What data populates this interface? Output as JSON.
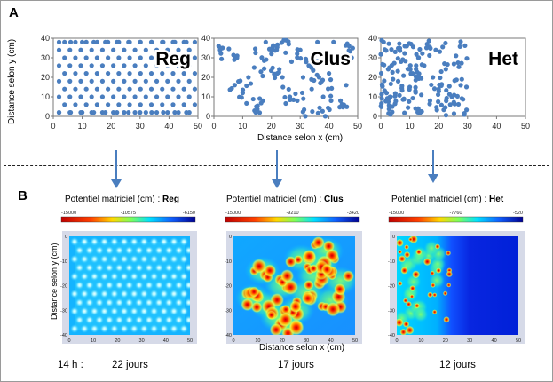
{
  "panel_a": {
    "letter": "A"
  },
  "panel_b": {
    "letter": "B"
  },
  "shared": {
    "xlabel_top": "Distance selon x (cm)",
    "ylabel_top": "Distance selon y (cm)",
    "xlabel_bottom": "Distance selon x (cm)",
    "ylabel_bottom": "Distance selon y (cm)"
  },
  "colors": {
    "point": "#4a7ebf",
    "arrow": "#4a7ebf",
    "heat_low": "#d00000",
    "heat_high": "#0a1aa0"
  },
  "chart_data": [
    {
      "type": "scatter",
      "label": "Reg",
      "pattern": "regular",
      "xlim": [
        0,
        50
      ],
      "ylim": [
        0,
        40
      ],
      "xticks": [
        0,
        10,
        20,
        30,
        40,
        50
      ],
      "yticks": [
        0,
        10,
        20,
        30,
        40
      ],
      "x": [
        2,
        6,
        10,
        14,
        18,
        22,
        26,
        30,
        34,
        38,
        42,
        46,
        2,
        6,
        10,
        14,
        18,
        22,
        26,
        30,
        34,
        38,
        42,
        46
      ],
      "y": [
        2,
        2,
        2,
        2,
        2,
        2,
        2,
        2,
        2,
        2,
        2,
        2,
        38,
        38,
        38,
        38,
        38,
        38,
        38,
        38,
        38,
        38,
        38,
        38
      ]
    },
    {
      "type": "scatter",
      "label": "Clus",
      "pattern": "clustered",
      "xlim": [
        0,
        50
      ],
      "ylim": [
        0,
        40
      ],
      "xticks": [
        0,
        10,
        20,
        30,
        40,
        50
      ],
      "yticks": [
        0,
        10,
        20,
        30,
        40
      ],
      "x": [
        3,
        8,
        10,
        12,
        14,
        17,
        18,
        20,
        22,
        24,
        26,
        27,
        29,
        30,
        31,
        33,
        34,
        36,
        38,
        40,
        42,
        44,
        46,
        47
      ],
      "y": [
        35,
        30,
        12,
        20,
        25,
        8,
        38,
        32,
        22,
        15,
        37,
        28,
        8,
        34,
        20,
        26,
        14,
        38,
        10,
        22,
        32,
        8,
        16,
        36
      ]
    },
    {
      "type": "scatter",
      "label": "Het",
      "pattern": "heterogeneous",
      "xlim": [
        0,
        50
      ],
      "ylim": [
        0,
        40
      ],
      "xticks": [
        0,
        10,
        20,
        30,
        40,
        50
      ],
      "yticks": [
        0,
        10,
        20,
        30,
        40
      ],
      "x": [
        1,
        2,
        3,
        4,
        5,
        6,
        7,
        8,
        9,
        10,
        11,
        12,
        13,
        14,
        15,
        16,
        17,
        18,
        19,
        20,
        22,
        24,
        26,
        28
      ],
      "y": [
        38,
        12,
        25,
        5,
        33,
        18,
        28,
        9,
        36,
        15,
        22,
        4,
        30,
        11,
        26,
        37,
        8,
        20,
        34,
        14,
        27,
        6,
        31,
        19
      ]
    },
    {
      "type": "heatmap",
      "title_prefix": "Potentiel matriciel (cm) : ",
      "title_bold": "Reg",
      "colorbar_ticks": [
        "-15000",
        "-10575",
        "-6150"
      ],
      "xlim": [
        0,
        50
      ],
      "ylim": [
        -40,
        0
      ],
      "xticks": [
        0,
        10,
        20,
        30,
        40,
        50
      ],
      "yticks": [
        0,
        -10,
        -20,
        -30,
        -40
      ],
      "time": "22 jours"
    },
    {
      "type": "heatmap",
      "title_prefix": "Potentiel matriciel (cm) : ",
      "title_bold": "Clus",
      "colorbar_ticks": [
        "-15000",
        "-9210",
        "-3420"
      ],
      "xlim": [
        0,
        50
      ],
      "ylim": [
        -40,
        0
      ],
      "xticks": [
        0,
        10,
        20,
        30,
        40,
        50
      ],
      "yticks": [
        0,
        -10,
        -20,
        -30,
        -40
      ],
      "time": "17 jours"
    },
    {
      "type": "heatmap",
      "title_prefix": "Potentiel matriciel (cm) : ",
      "title_bold": "Het",
      "colorbar_ticks": [
        "-15000",
        "-7760",
        "-520"
      ],
      "xlim": [
        0,
        50
      ],
      "ylim": [
        -40,
        0
      ],
      "xticks": [
        0,
        10,
        20,
        30,
        40,
        50
      ],
      "yticks": [
        0,
        -10,
        -20,
        -30,
        -40
      ],
      "time": "12 jours"
    }
  ],
  "footer": {
    "time_prefix": "14 h :"
  }
}
